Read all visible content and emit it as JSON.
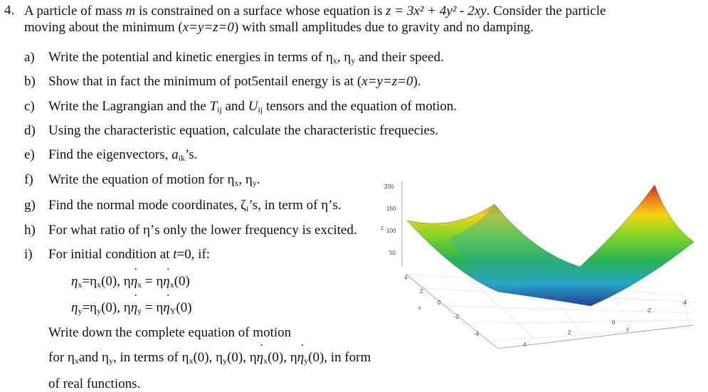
{
  "problem": {
    "number": "4.",
    "intro_a": "A particle of mass ",
    "intro_m": "m",
    "intro_b": " is constrained on a surface whose equation is ",
    "intro_eq": "z = 3x² + 4y² - 2xy",
    "intro_c": ". Consider the particle",
    "intro_d": "moving about the minimum (",
    "intro_min": "x=y=z=0",
    "intro_e": ") with small amplitudes due to gravity and no damping."
  },
  "items": {
    "a": {
      "label": "a)",
      "text": "Write the potential and kinetic energies in terms of η",
      "t2": ", η",
      "t3": " and their speed."
    },
    "b": {
      "label": "b)",
      "text": "Show that in fact the minimum of pot5entail energy is at (",
      "eq": "x=y=z=0",
      "t2": ")."
    },
    "c": {
      "label": "c)",
      "text": "Write the Lagrangian and the ",
      "T": "T",
      "ij": "ij",
      "and": " and ",
      "U": "U",
      "t2": " tensors and the equation of motion."
    },
    "d": {
      "label": "d)",
      "text": "Using the characteristic equation, calculate the characteristic frequecies."
    },
    "e": {
      "label": "e)",
      "text": "Find the eigenvectors, ",
      "a": "a",
      "ik": "ik",
      "t2": "’s."
    },
    "f": {
      "label": "f)",
      "text": "Write the equation of motion for η",
      "t2": ", η",
      "t3": "."
    },
    "g": {
      "label": "g)",
      "text": "Find the normal mode coordinates, ζ",
      "i": "i",
      "t2": "’s, in term of η’s."
    },
    "h": {
      "label": "h)",
      "text": "For what ratio of η’s only the lower frequency is excited."
    },
    "i": {
      "label": "i)",
      "text": "For initial condition at ",
      "t": "t",
      "eq": "=0",
      "t2": ", if:"
    }
  },
  "subs": {
    "x": "x",
    "y": "y",
    "Y": "Y"
  },
  "cond": {
    "line1_a": "η",
    "line1_b": "=η",
    "line1_c": "(0), η",
    "line1_d": " = η",
    "line1_e": "(0)",
    "line2_a": "η",
    "line2_b": "=η",
    "line2_c": "(0), η",
    "line2_d": " = η",
    "line2_e": "(0)"
  },
  "final": {
    "line1": "Write down the complete equation of motion",
    "line2_a": "for η",
    "line2_b": "and η",
    "line2_c": ", in terms of η",
    "line2_d": "(0),  η",
    "line2_e": "(0), η",
    "line2_f": "(0), η",
    "line2_g": "(0), in form",
    "line3": "of real functions."
  },
  "chart_data": {
    "type": "surface",
    "equation": "z = 3x² + 4y² - 2xy",
    "zlabel": "z",
    "xlabel": "x",
    "ylabel": "y",
    "z_ticks": [
      "200",
      "150",
      "100",
      "50"
    ],
    "x_ticks": [
      "4",
      "2",
      "0",
      "-2",
      "-4"
    ],
    "y_ticks": [
      "-4",
      "-2",
      "0",
      "2",
      "4"
    ],
    "colorscale": [
      "#1f3a93",
      "#1fa0c8",
      "#22b14c",
      "#7ed321",
      "#f5d20a",
      "#f07a1a",
      "#d62020"
    ]
  }
}
